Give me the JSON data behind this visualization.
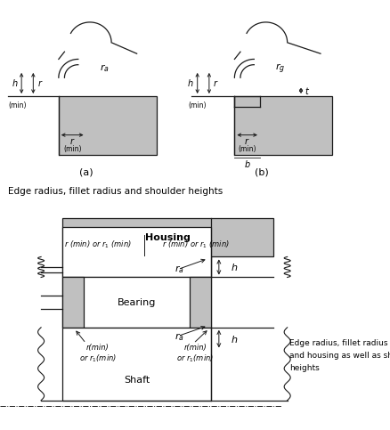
{
  "bg_color": "#ffffff",
  "gray_color": "#c0c0c0",
  "line_color": "#1a1a1a",
  "subtitle": "Edge radius, fillet radius and shoulder heights",
  "caption_lines": [
    "Edge radius, fillet radius of shaft",
    "and housing as well as shoulder",
    "heights"
  ]
}
